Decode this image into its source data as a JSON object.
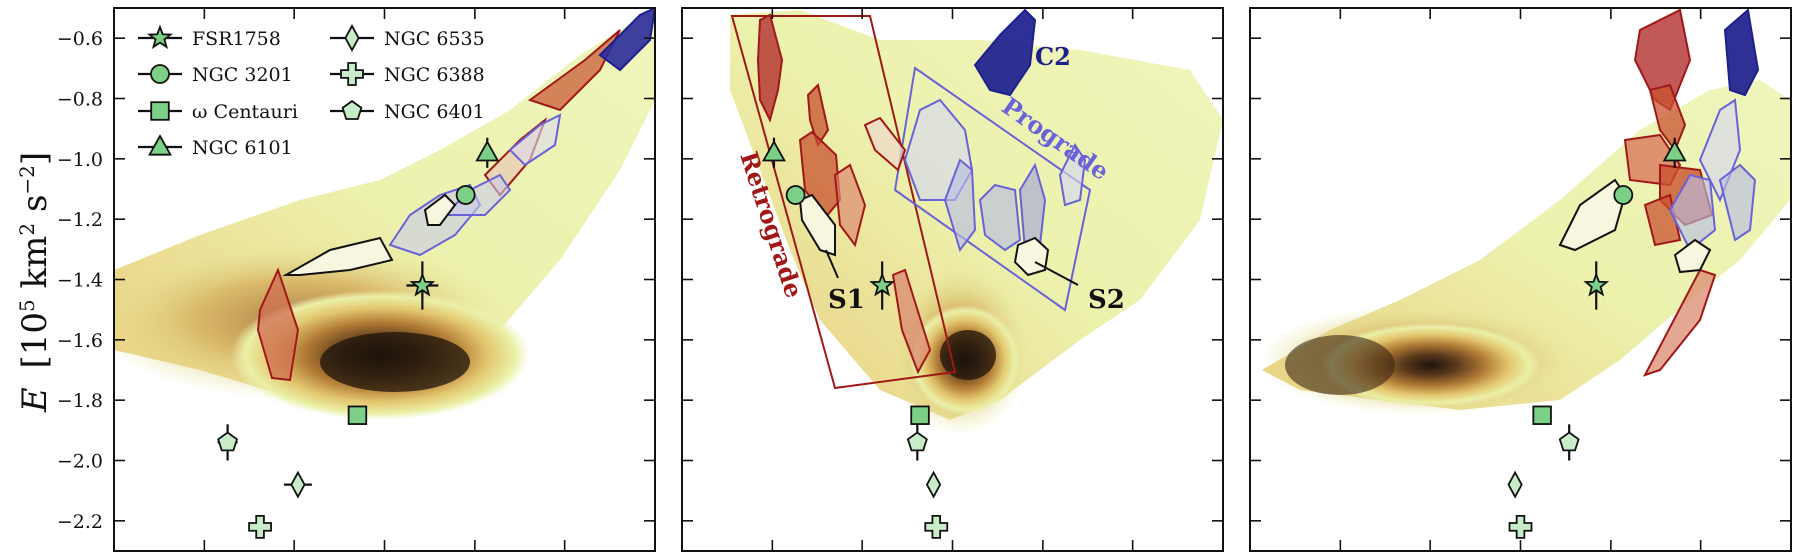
{
  "chart_data": {
    "type": "scatter",
    "ylabel_main": "E",
    "ylabel_units": "[10",
    "ylabel_units_exp": "5",
    "ylabel_units_mid": " km",
    "ylabel_units_exp2": "2",
    "ylabel_units_end": " s",
    "ylabel_units_exp3": "−2",
    "ylabel_units_close": "]",
    "ylim": [
      -2.3,
      -0.5
    ],
    "yticks": [
      -0.6,
      -0.8,
      -1.0,
      -1.2,
      -1.4,
      -1.6,
      -1.8,
      -2.0,
      -2.2
    ],
    "ytick_labels": [
      "−0.6",
      "−0.8",
      "−1.0",
      "−1.2",
      "−1.4",
      "−1.6",
      "−1.8",
      "−2.0",
      "−2.2"
    ],
    "grid": false,
    "legend": {
      "placement": "top-left",
      "entries": [
        {
          "label": "FSR1758",
          "marker": "star"
        },
        {
          "label": "NGC 3201",
          "marker": "circle"
        },
        {
          "label": "ω Centauri",
          "marker": "square"
        },
        {
          "label": "NGC 6101",
          "marker": "triangle"
        },
        {
          "label": "NGC 6535",
          "marker": "diamond"
        },
        {
          "label": "NGC 6388",
          "marker": "plus"
        },
        {
          "label": "NGC 6401",
          "marker": "pentagon"
        }
      ]
    },
    "colors": {
      "cluster_fill": "#7ccf86",
      "cluster_fill_light": "#c8ebc8",
      "retrograde": "#a01818",
      "retrograde_fill": "#c8522f",
      "prograde": "#6a62d8",
      "prograde_fill": "#b9bde2",
      "c2": "#1c1f8f",
      "density_light": "#e6efa0",
      "density_dark": "#2a1a10"
    },
    "panels": [
      {
        "points": [
          {
            "name": "FSR1758",
            "y": -1.42
          },
          {
            "name": "NGC 3201",
            "y": -1.12
          },
          {
            "name": "ω Centauri",
            "y": -1.85
          },
          {
            "name": "NGC 6101",
            "y": -0.98
          },
          {
            "name": "NGC 6535",
            "y": -2.08
          },
          {
            "name": "NGC 6388",
            "y": -2.22
          },
          {
            "name": "NGC 6401",
            "y": -1.94
          }
        ],
        "annotations": []
      },
      {
        "points": [
          {
            "name": "FSR1758",
            "y": -1.42
          },
          {
            "name": "NGC 3201",
            "y": -1.12
          },
          {
            "name": "ω Centauri",
            "y": -1.85
          },
          {
            "name": "NGC 6101",
            "y": -0.98
          },
          {
            "name": "NGC 6535",
            "y": -2.08
          },
          {
            "name": "NGC 6388",
            "y": -2.22
          },
          {
            "name": "NGC 6401",
            "y": -1.94
          }
        ],
        "annotations": [
          {
            "text": "C2",
            "color": "#1c1f8f"
          },
          {
            "text": "Prograde",
            "color": "#6a62d8"
          },
          {
            "text": "Retrograde",
            "color": "#a01818"
          },
          {
            "text": "S1",
            "color": "#111111"
          },
          {
            "text": "S2",
            "color": "#111111"
          }
        ]
      },
      {
        "points": [
          {
            "name": "FSR1758",
            "y": -1.42
          },
          {
            "name": "NGC 3201",
            "y": -1.12
          },
          {
            "name": "ω Centauri",
            "y": -1.85
          },
          {
            "name": "NGC 6101",
            "y": -0.98
          },
          {
            "name": "NGC 6535",
            "y": -2.08
          },
          {
            "name": "NGC 6388",
            "y": -2.22
          },
          {
            "name": "NGC 6401",
            "y": -1.94
          }
        ],
        "annotations": []
      }
    ]
  }
}
